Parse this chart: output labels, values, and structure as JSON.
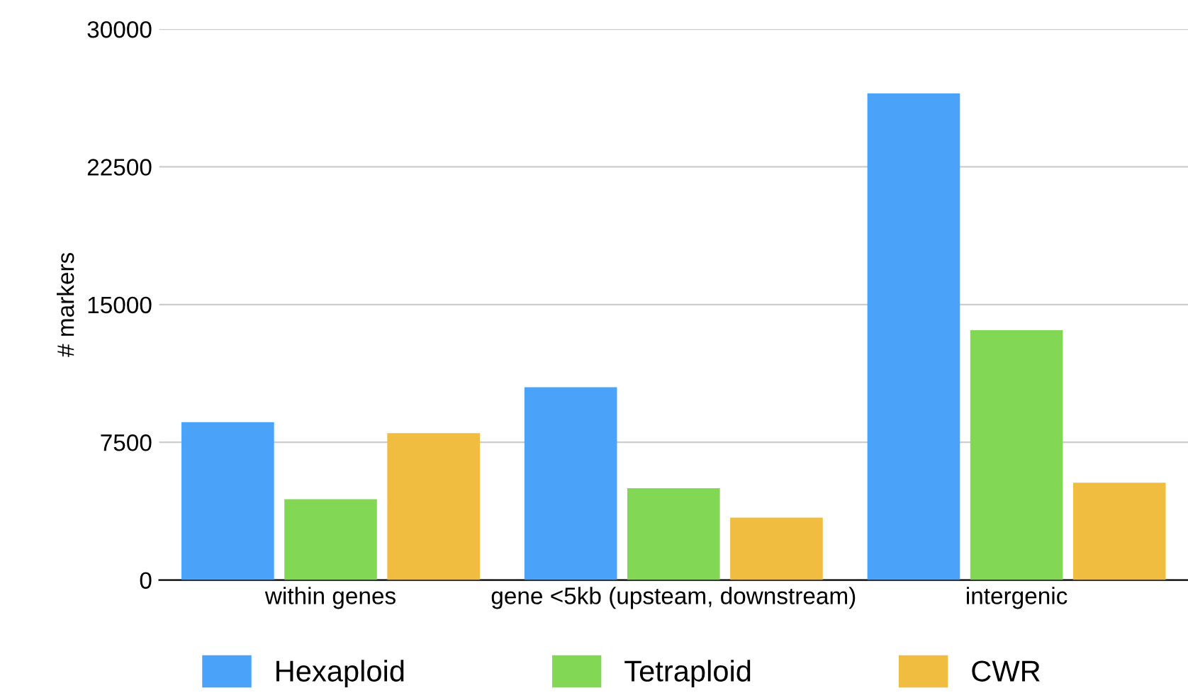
{
  "chart_data": {
    "type": "bar",
    "ylabel": "# markers",
    "categories": [
      "within genes",
      "gene <5kb (upsteam, downstream)",
      "intergenic"
    ],
    "series": [
      {
        "name": "Hexaploid",
        "color": "#4aa3f8",
        "values": [
          8600,
          10500,
          26500
        ]
      },
      {
        "name": "Tetraploid",
        "color": "#82d854",
        "values": [
          4400,
          5000,
          13600
        ]
      },
      {
        "name": "CWR",
        "color": "#f0bd40",
        "values": [
          8000,
          3400,
          5300
        ]
      }
    ],
    "ylim": [
      0,
      30000
    ],
    "yticks": [
      0,
      7500,
      15000,
      22500,
      30000
    ],
    "grid": "y",
    "legend": "bottom"
  }
}
